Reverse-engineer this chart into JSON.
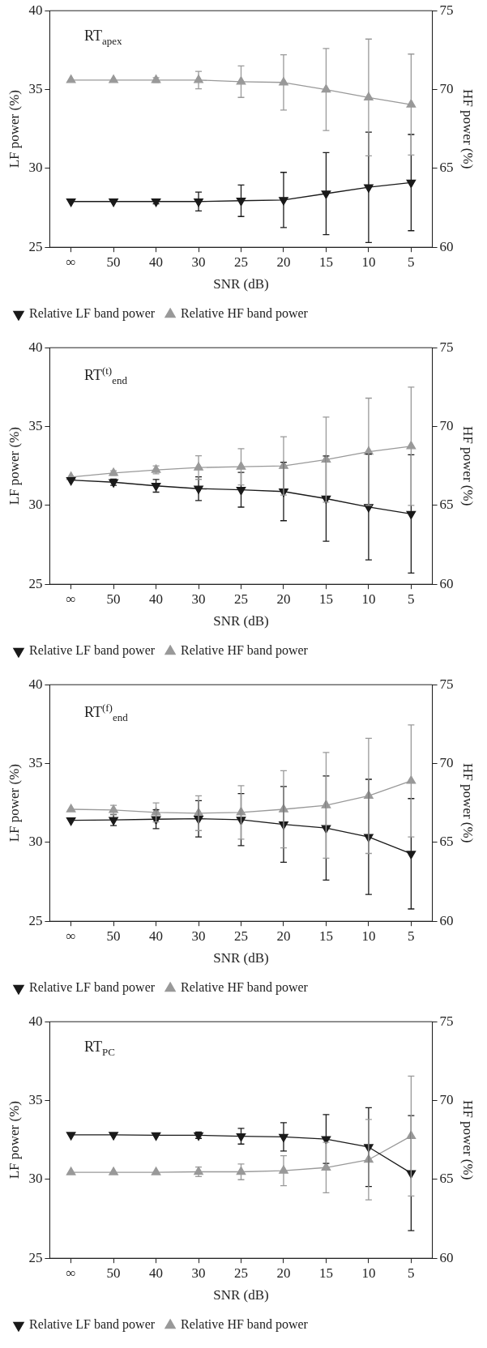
{
  "chart_data": [
    {
      "type": "line",
      "title": "RT$_{apex}$",
      "xlabel": "SNR (dB)",
      "ylabel": "LF power (%)",
      "y2label": "HF power (%)",
      "categories": [
        "∞",
        "50",
        "40",
        "30",
        "25",
        "20",
        "15",
        "10",
        "5"
      ],
      "ylim": [
        25,
        40
      ],
      "yticks": [
        25,
        30,
        35,
        40
      ],
      "y2lim": [
        60,
        75
      ],
      "y2ticks": [
        60,
        65,
        70,
        75
      ],
      "legend": "bottom",
      "grid": false,
      "series": [
        {
          "name": "Relative LF band power",
          "color": "#1a1a1a",
          "marker": "triangle-down",
          "values": [
            27.9,
            27.9,
            27.9,
            27.9,
            27.95,
            28.0,
            28.4,
            28.8,
            29.1
          ],
          "errors": [
            null,
            null,
            0.15,
            0.6,
            1.0,
            1.75,
            2.6,
            3.5,
            3.05
          ]
        },
        {
          "name": "Relative HF band power",
          "color": "#999999",
          "marker": "triangle",
          "axis": "y2",
          "values": [
            70.6,
            70.6,
            70.6,
            70.6,
            70.5,
            70.45,
            70.0,
            69.5,
            69.05
          ],
          "errors": [
            null,
            null,
            0.15,
            0.55,
            1.0,
            1.75,
            2.6,
            3.7,
            3.2
          ]
        }
      ]
    },
    {
      "type": "line",
      "title": "RT$^{(t)}$$_{end}$",
      "xlabel": "SNR (dB)",
      "ylabel": "LF power (%)",
      "y2label": "HF power (%)",
      "categories": [
        "∞",
        "50",
        "40",
        "30",
        "25",
        "20",
        "15",
        "10",
        "5"
      ],
      "ylim": [
        25,
        40
      ],
      "yticks": [
        25,
        30,
        35,
        40
      ],
      "y2lim": [
        60,
        75
      ],
      "y2ticks": [
        60,
        65,
        70,
        75
      ],
      "legend": "bottom",
      "grid": false,
      "series": [
        {
          "name": "Relative LF band power",
          "color": "#1a1a1a",
          "marker": "triangle-down",
          "values": [
            31.6,
            31.47,
            31.24,
            31.06,
            30.99,
            30.88,
            30.43,
            29.9,
            29.46
          ],
          "errors": [
            null,
            0.2,
            0.4,
            0.75,
            1.1,
            1.85,
            2.7,
            3.35,
            3.75
          ]
        },
        {
          "name": "Relative HF band power",
          "color": "#999999",
          "marker": "triangle",
          "axis": "y2",
          "values": [
            66.8,
            67.05,
            67.25,
            67.4,
            67.45,
            67.5,
            67.9,
            68.4,
            68.75
          ],
          "errors": [
            null,
            0.15,
            0.25,
            0.75,
            1.15,
            1.85,
            2.7,
            3.4,
            3.75
          ]
        }
      ]
    },
    {
      "type": "line",
      "title": "RT$^{(f)}$$_{end}$",
      "xlabel": "SNR (dB)",
      "ylabel": "LF power (%)",
      "y2label": "HF power (%)",
      "categories": [
        "∞",
        "50",
        "40",
        "30",
        "25",
        "20",
        "15",
        "10",
        "5"
      ],
      "ylim": [
        25,
        40
      ],
      "yticks": [
        25,
        30,
        35,
        40
      ],
      "y2lim": [
        60,
        75
      ],
      "y2ticks": [
        60,
        65,
        70,
        75
      ],
      "legend": "bottom",
      "grid": false,
      "series": [
        {
          "name": "Relative LF band power",
          "color": "#1a1a1a",
          "marker": "triangle-down",
          "values": [
            31.4,
            31.42,
            31.47,
            31.5,
            31.44,
            31.14,
            30.91,
            30.35,
            29.28
          ],
          "errors": [
            null,
            0.35,
            0.6,
            1.15,
            1.65,
            2.4,
            3.3,
            3.65,
            3.5
          ]
        },
        {
          "name": "Relative HF band power",
          "color": "#999999",
          "marker": "triangle",
          "axis": "y2",
          "values": [
            67.1,
            67.05,
            66.9,
            66.85,
            66.9,
            67.1,
            67.35,
            67.95,
            68.9
          ],
          "errors": [
            null,
            0.3,
            0.6,
            1.1,
            1.7,
            2.45,
            3.35,
            3.65,
            3.55
          ]
        }
      ]
    },
    {
      "type": "line",
      "title": "RT$_{PC}$",
      "xlabel": "SNR (dB)",
      "ylabel": "LF power (%)",
      "y2label": "HF power (%)",
      "categories": [
        "∞",
        "50",
        "40",
        "30",
        "25",
        "20",
        "15",
        "10",
        "5"
      ],
      "ylim": [
        25,
        40
      ],
      "yticks": [
        25,
        30,
        35,
        40
      ],
      "y2lim": [
        60,
        75
      ],
      "y2ticks": [
        60,
        65,
        70,
        75
      ],
      "legend": "bottom",
      "grid": false,
      "series": [
        {
          "name": "Relative LF band power",
          "color": "#1a1a1a",
          "marker": "triangle-down",
          "values": [
            32.82,
            32.82,
            32.8,
            32.8,
            32.74,
            32.7,
            32.56,
            32.05,
            30.4
          ],
          "errors": [
            null,
            null,
            null,
            0.2,
            0.5,
            0.9,
            1.55,
            2.5,
            3.65
          ]
        },
        {
          "name": "Relative HF band power",
          "color": "#999999",
          "marker": "triangle",
          "axis": "y2",
          "values": [
            65.45,
            65.45,
            65.45,
            65.48,
            65.48,
            65.55,
            65.75,
            66.25,
            67.75
          ],
          "errors": [
            null,
            null,
            null,
            0.3,
            0.5,
            0.95,
            1.6,
            2.55,
            3.8
          ]
        }
      ]
    }
  ]
}
